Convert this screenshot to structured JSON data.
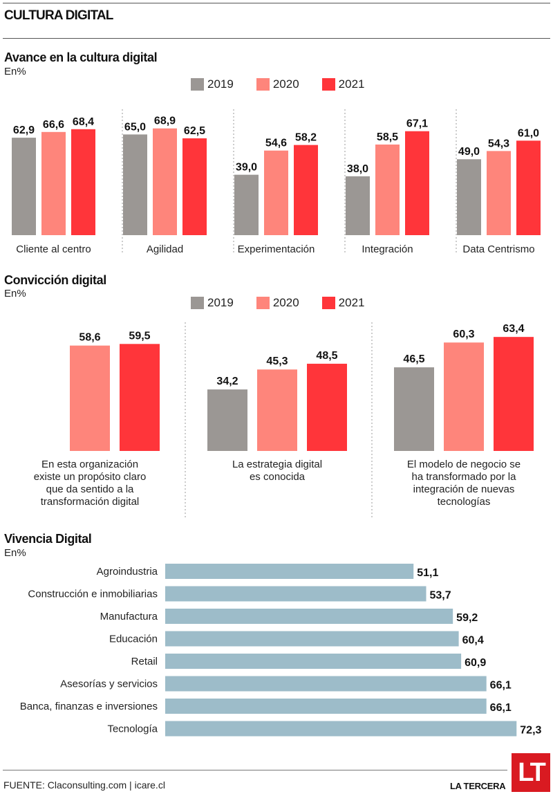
{
  "header": {
    "title": "CULTURA DIGITAL"
  },
  "colors": {
    "y2019": "#9b9794",
    "y2020": "#fe857b",
    "y2021": "#ff353a",
    "vivencia_bar": "#9dbcc9",
    "brand_red": "#d91a21"
  },
  "legend": [
    {
      "label": "2019",
      "color": "#9b9794"
    },
    {
      "label": "2020",
      "color": "#fe857b"
    },
    {
      "label": "2021",
      "color": "#ff353a"
    }
  ],
  "chart_data": [
    {
      "type": "bar",
      "title": "Avance en la cultura digital",
      "subtitle": "En%",
      "categories": [
        "Cliente al centro",
        "Agilidad",
        "Experimentación",
        "Integración",
        "Data Centrismo"
      ],
      "series": [
        {
          "name": "2019",
          "values": [
            62.9,
            65.0,
            39.0,
            38.0,
            49.0
          ],
          "labels": [
            "62,9",
            "65,0",
            "39,0",
            "38,0",
            "49,0"
          ]
        },
        {
          "name": "2020",
          "values": [
            66.6,
            68.9,
            54.6,
            58.5,
            54.3
          ],
          "labels": [
            "66,6",
            "68,9",
            "54,6",
            "58,5",
            "54,3"
          ]
        },
        {
          "name": "2021",
          "values": [
            68.4,
            62.5,
            58.2,
            67.1,
            61.0
          ],
          "labels": [
            "68,4",
            "62,5",
            "58,2",
            "67,1",
            "61,0"
          ]
        }
      ],
      "xlabel": "",
      "ylabel": "",
      "ylim": [
        0,
        70
      ],
      "grid": false,
      "legend": "top-center"
    },
    {
      "type": "bar",
      "title": "Convicción digital",
      "subtitle": "En%",
      "categories": [
        [
          "En esta organización",
          "existe un propósito claro",
          "que da sentido a la",
          "transformación digital"
        ],
        [
          "La estrategia digital",
          "es conocida"
        ],
        [
          "El modelo de negocio se",
          "ha transformado por la",
          "integración de nuevas",
          "tecnologías"
        ]
      ],
      "series": [
        {
          "name": "2019",
          "values": [
            null,
            34.2,
            46.5
          ],
          "labels": [
            null,
            "34,2",
            "46,5"
          ]
        },
        {
          "name": "2020",
          "values": [
            58.6,
            45.3,
            60.3
          ],
          "labels": [
            "58,6",
            "45,3",
            "60,3"
          ]
        },
        {
          "name": "2021",
          "values": [
            59.5,
            48.5,
            63.4
          ],
          "labels": [
            "59,5",
            "48,5",
            "63,4"
          ]
        }
      ],
      "xlabel": "",
      "ylabel": "",
      "ylim": [
        0,
        65
      ],
      "grid": false,
      "legend": "top-center"
    },
    {
      "type": "bar",
      "orientation": "horizontal",
      "title": "Vivencia Digital",
      "subtitle": "En%",
      "categories": [
        "Agroindustria",
        "Construcción e inmobiliarias",
        "Manufactura",
        "Educación",
        "Retail",
        "Asesorías y servicios",
        "Banca, finanzas e inversiones",
        "Tecnología"
      ],
      "values": [
        51.1,
        53.7,
        59.2,
        60.4,
        60.9,
        66.1,
        66.1,
        72.3
      ],
      "labels": [
        "51,1",
        "53,7",
        "59,2",
        "60,4",
        "60,9",
        "66,1",
        "66,1",
        "72,3"
      ],
      "xlabel": "",
      "ylabel": "",
      "xlim": [
        0,
        75
      ],
      "grid": false
    }
  ],
  "footer": {
    "source": "FUENTE: Claconsulting.com | icare.cl",
    "brand": "LA TERCERA",
    "logo": "LT"
  }
}
